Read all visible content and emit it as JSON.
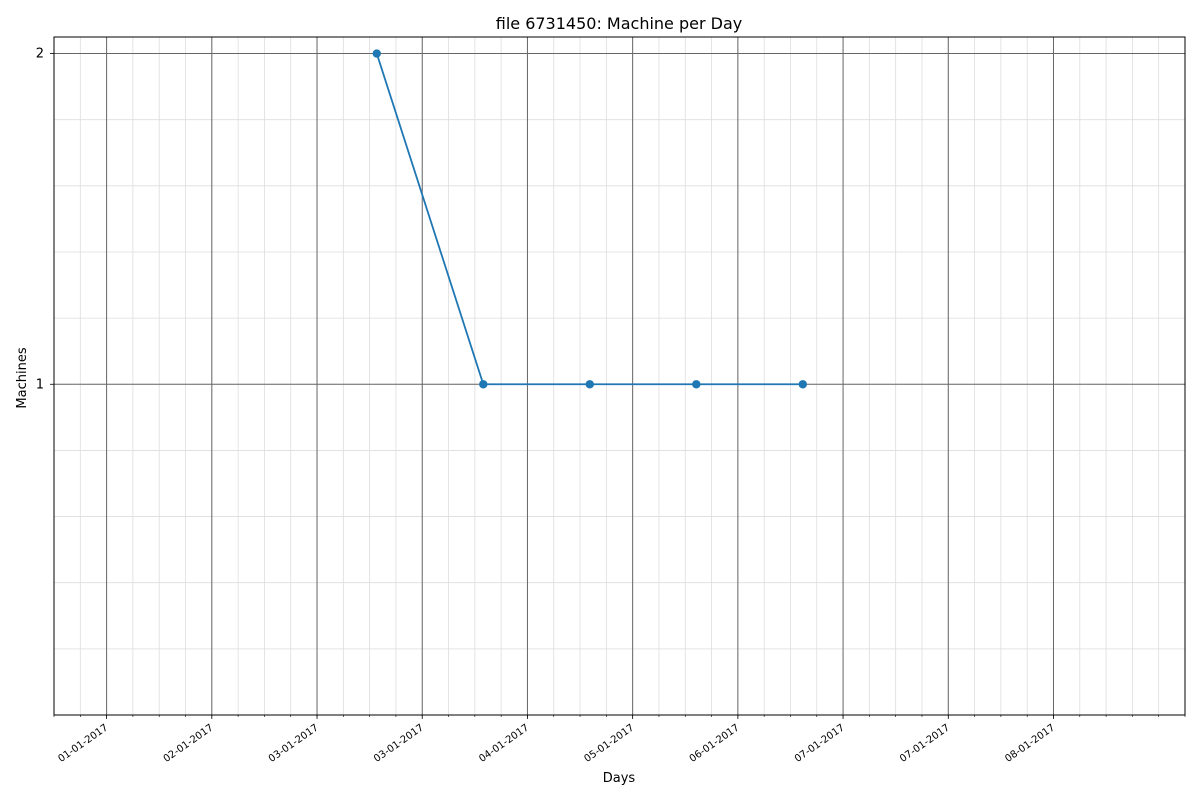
{
  "chart_data": {
    "type": "line",
    "title": "file 6731450: Machine per Day",
    "xlabel": "Days",
    "ylabel": "Machines",
    "x_tick_labels": [
      "01-01-2017",
      "02-01-2017",
      "03-01-2017",
      "03-01-2017",
      "04-01-2017",
      "05-01-2017",
      "06-01-2017",
      "07-01-2017",
      "07-01-2017",
      "08-01-2017"
    ],
    "y_ticks": [
      1,
      2
    ],
    "ylim": [
      0,
      2.05
    ],
    "grid": true,
    "series": [
      {
        "color": "#1f77b4",
        "x": [
          "2017-04-15",
          "2017-05-26",
          "2017-07-06",
          "2017-08-16",
          "2017-09-26"
        ],
        "y": [
          2,
          1,
          1,
          1,
          1
        ]
      }
    ]
  }
}
